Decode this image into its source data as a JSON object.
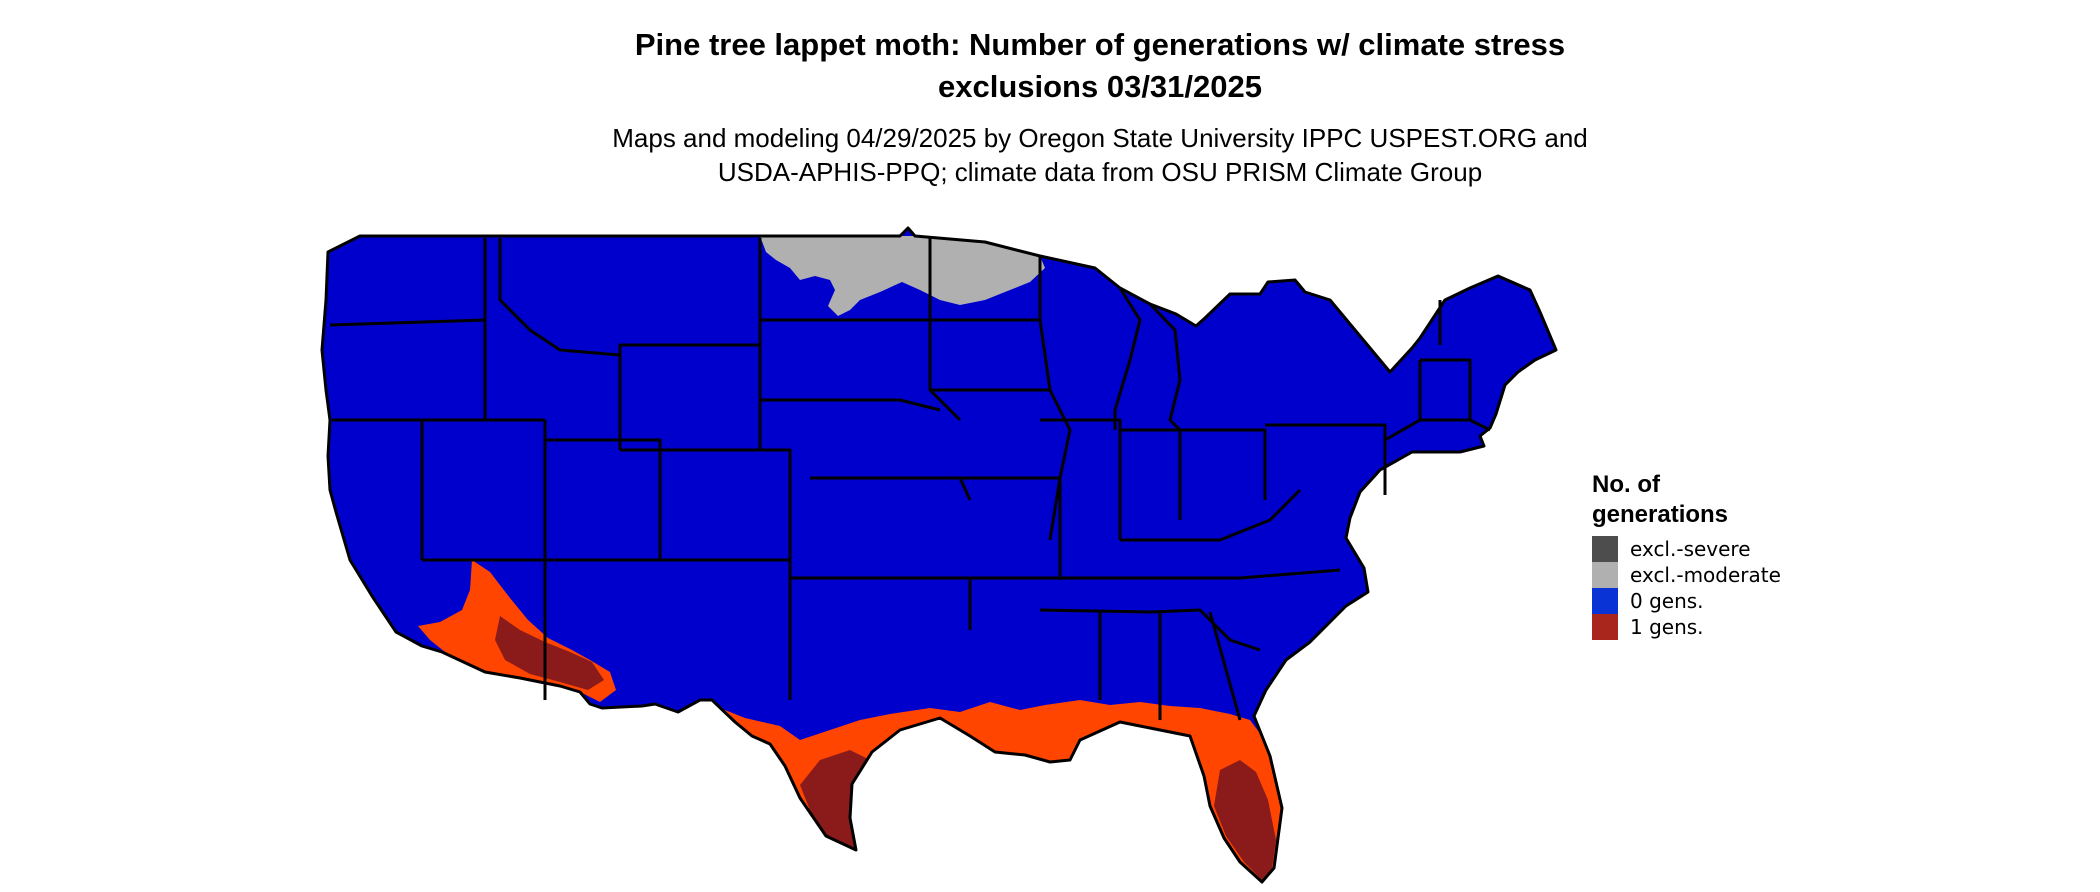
{
  "title": {
    "line1": "Pine tree lappet moth: Number of generations w/ climate stress",
    "line2": "exclusions 03/31/2025"
  },
  "subtitle": {
    "line1": "Maps and modeling 04/29/2025 by Oregon State University IPPC USPEST.ORG and",
    "line2": "USDA-APHIS-PPQ; climate data from OSU PRISM Climate Group"
  },
  "legend": {
    "title_line1": "No. of",
    "title_line2": "generations",
    "items": [
      {
        "label": "excl.-severe",
        "color": "#4d4d4d"
      },
      {
        "label": "excl.-moderate",
        "color": "#b0b0b0"
      },
      {
        "label": "0 gens.",
        "color": "#0a33d6"
      },
      {
        "label": "1 gens.",
        "color": "#a8261b"
      }
    ]
  },
  "colors": {
    "zero_gens_fill": "#0000cd",
    "one_gen_orange": "#ff4500",
    "one_gen_dark": "#8b1a1a",
    "one_gen_mid": "#c6331f",
    "excl_moderate_fill": "#b0b0b0",
    "border": "#000000"
  }
}
